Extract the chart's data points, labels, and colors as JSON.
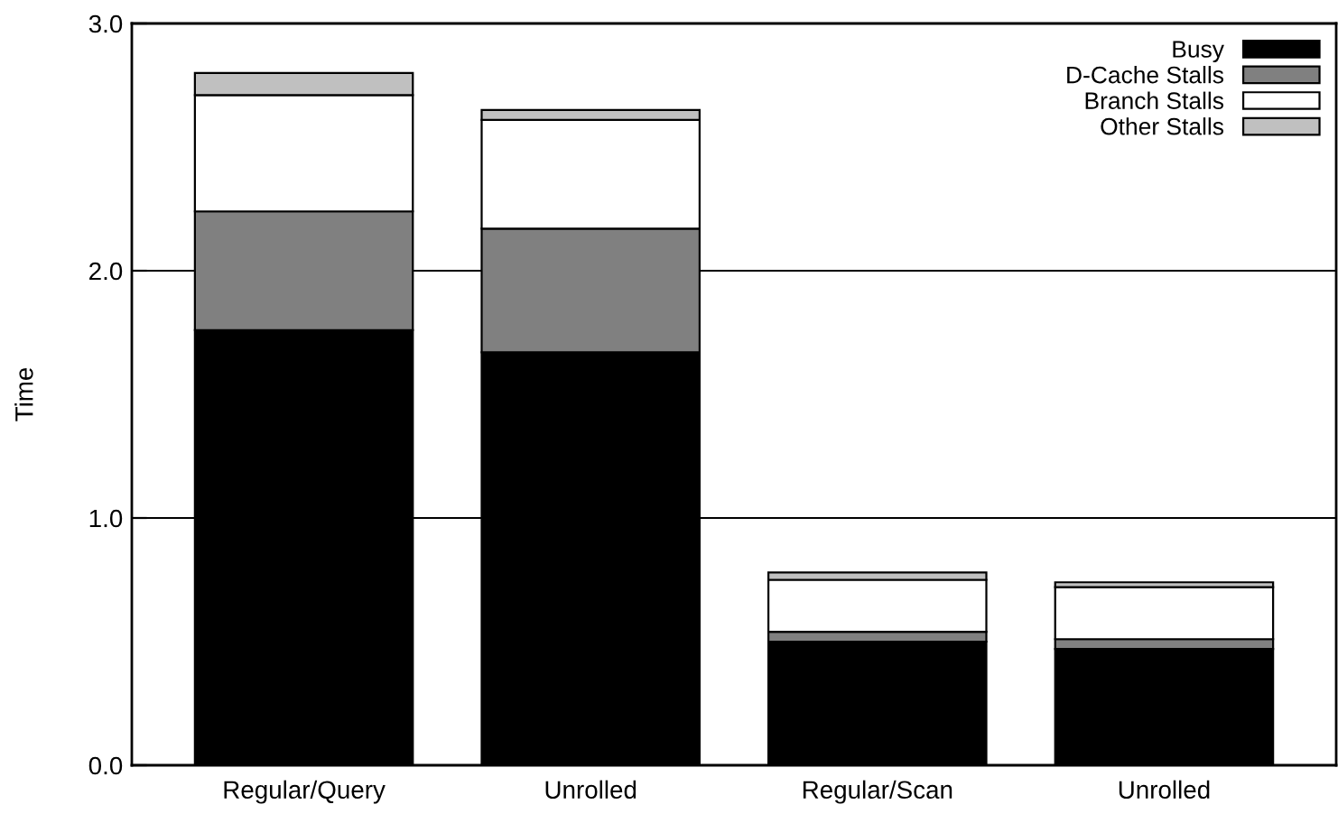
{
  "chart_data": {
    "type": "bar",
    "ylabel": "Time",
    "stacked": true,
    "categories": [
      "Regular/Query",
      "Unrolled",
      "Regular/Scan",
      "Unrolled"
    ],
    "series": [
      {
        "name": "Busy",
        "color": "#000000",
        "values": [
          1.76,
          1.67,
          0.5,
          0.47
        ]
      },
      {
        "name": "D-Cache Stalls",
        "color": "#808080",
        "values": [
          0.48,
          0.5,
          0.04,
          0.04
        ]
      },
      {
        "name": "Branch Stalls",
        "color": "#ffffff",
        "values": [
          0.47,
          0.44,
          0.21,
          0.21
        ]
      },
      {
        "name": "Other Stalls",
        "color": "#c0c0c0",
        "values": [
          0.09,
          0.04,
          0.03,
          0.02
        ]
      }
    ],
    "ylim": [
      0,
      3
    ],
    "yticks": [
      {
        "value": 0,
        "label": "0.0"
      },
      {
        "value": 1,
        "label": "1.0"
      },
      {
        "value": 2,
        "label": "2.0"
      },
      {
        "value": 3,
        "label": "3.0"
      }
    ],
    "grid": "y",
    "legend": "top right"
  }
}
